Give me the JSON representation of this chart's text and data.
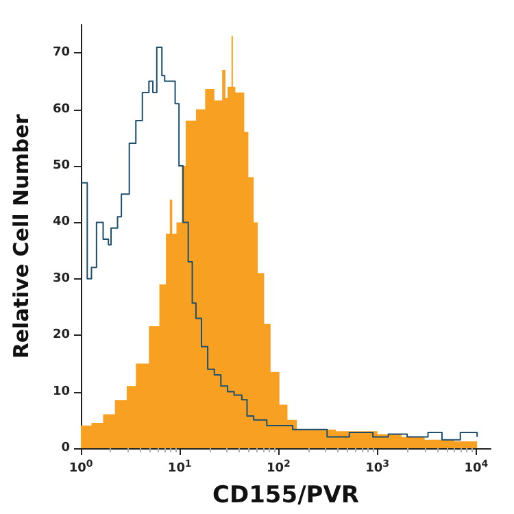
{
  "chart_data": {
    "type": "area",
    "xlabel": "CD155/PVR",
    "ylabel": "Relative Cell Number",
    "log": "x",
    "grid": false,
    "marker": "none",
    "xlim": [
      1,
      14000
    ],
    "xticks": [
      {
        "value": 1,
        "label": "10$^{0}$"
      },
      {
        "value": 10,
        "label": "10$^{1}$"
      },
      {
        "value": 100,
        "label": "10$^{2}$"
      },
      {
        "value": 1000,
        "label": "10$^{3}$"
      },
      {
        "value": 10000,
        "label": "10$^{4}$"
      }
    ],
    "ylim": [
      0,
      75
    ],
    "yticks": [
      0,
      10,
      20,
      30,
      40,
      50,
      60,
      70
    ],
    "series": [
      {
        "color": "#f7a021",
        "x": [
          1,
          1.28,
          1.68,
          2.21,
          2.91,
          3.6,
          4.88,
          6.23,
          7.25,
          7.94,
          8.4,
          9.27,
          10.5,
          11.5,
          14.6,
          18.1,
          22.4,
          26.9,
          29,
          30.5,
          33.4,
          34.5,
          36.6,
          45,
          49.5,
          56,
          61.6,
          71.5,
          83,
          102,
          123,
          153,
          380,
          1000,
          1750,
          3000,
          6000,
          10200
        ],
        "values": [
          4,
          4.5,
          6,
          8.5,
          11,
          15,
          21.6,
          29,
          38,
          44,
          38,
          40,
          50,
          58,
          60,
          63.6,
          61.6,
          67,
          62,
          64,
          73,
          64,
          63,
          56,
          48,
          40,
          31,
          22,
          13.5,
          7.7,
          5,
          3.3,
          3,
          2.5,
          2,
          1.5,
          1.2,
          1
        ]
      },
      {
        "type": "step",
        "color": "#1d4f6e",
        "x": [
          1,
          1.16,
          1.28,
          1.44,
          1.68,
          1.9,
          2.02,
          2.35,
          2.57,
          3.09,
          3.6,
          4.19,
          4.88,
          5.35,
          5.86,
          6.6,
          7.04,
          7.94,
          8.99,
          9.83,
          10.8,
          12.2,
          13.4,
          14.6,
          16.6,
          19.2,
          22.4,
          26.1,
          30.5,
          35.5,
          42.5,
          48,
          56,
          76,
          139,
          310,
          520,
          900,
          1290,
          2000,
          3250,
          4500,
          6900,
          10200
        ],
        "values": [
          47,
          30,
          32,
          40,
          37,
          36,
          39,
          41,
          45,
          54,
          58,
          63,
          65,
          63,
          71,
          66,
          65,
          65,
          61,
          50,
          40,
          33,
          25.7,
          23,
          18,
          14,
          13,
          11,
          10,
          9.4,
          8.6,
          5.7,
          5,
          4,
          3.3,
          2,
          2.8,
          2,
          2.5,
          2,
          2.8,
          1.5,
          2.8,
          2
        ]
      }
    ]
  }
}
